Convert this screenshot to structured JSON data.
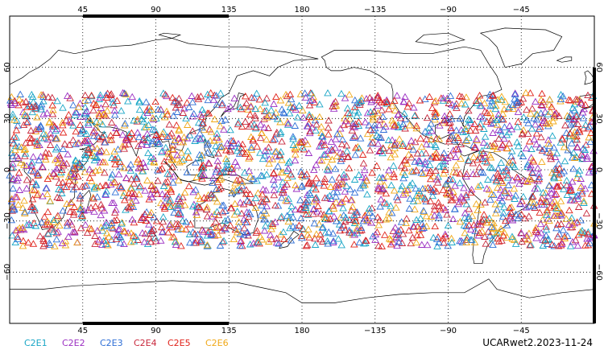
{
  "map": {
    "projection": "cylindrical-equidistant",
    "lon_range": [
      0,
      360
    ],
    "lat_range": [
      -90,
      90
    ],
    "grid": true,
    "grid_style": "dotted",
    "top_lon_labels": [
      "45",
      "90",
      "135",
      "180",
      "−135",
      "−90",
      "−45"
    ],
    "bottom_lon_labels": [
      "45",
      "90",
      "135",
      "180",
      "−135",
      "−90",
      "−45"
    ],
    "lat_labels": [
      "60",
      "30",
      "0",
      "−30",
      "−60"
    ],
    "coastline_color": "#000000",
    "marker_shape": "triangle-outline",
    "marker_lat_band": [
      -45,
      45
    ]
  },
  "legend": {
    "items": [
      {
        "label": "C2E1",
        "color": "#1aa6c6"
      },
      {
        "label": "C2E2",
        "color": "#9b2fc2"
      },
      {
        "label": "C2E3",
        "color": "#2f6fd6"
      },
      {
        "label": "C2E4",
        "color": "#c8283c"
      },
      {
        "label": "C2E5",
        "color": "#e0221a"
      },
      {
        "label": "C2E6",
        "color": "#f0a818"
      }
    ]
  },
  "footer": {
    "dataset_label": "UCARwet2.2023-11-24"
  }
}
